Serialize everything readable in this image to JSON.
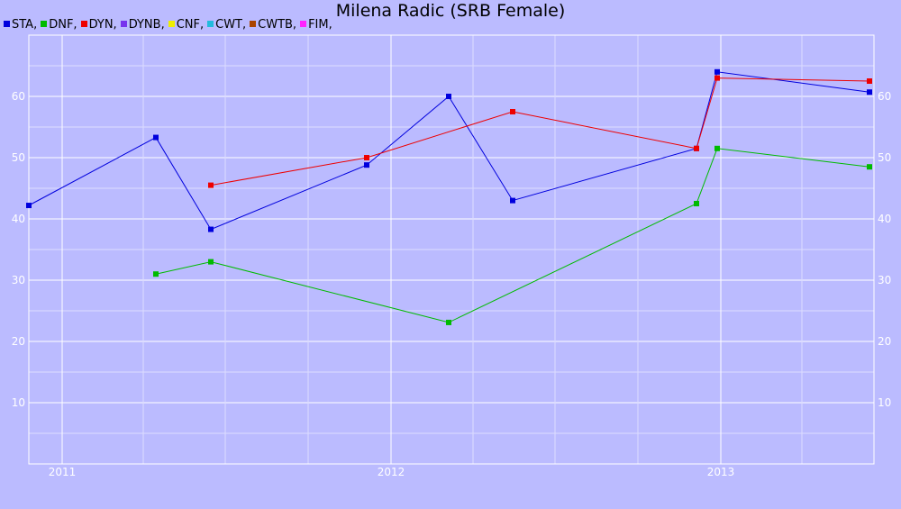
{
  "chart_data": {
    "type": "line",
    "title": "Milena Radic (SRB Female)",
    "legend_placement": "top-left",
    "legend": [
      {
        "label": "STA,",
        "color": "#0000dd"
      },
      {
        "label": "DNF,",
        "color": "#00bb00"
      },
      {
        "label": "DYN,",
        "color": "#ee0000"
      },
      {
        "label": "DYNB,",
        "color": "#7733ee"
      },
      {
        "label": "CNF,",
        "color": "#eeee00"
      },
      {
        "label": "CWT,",
        "color": "#22bbdd"
      },
      {
        "label": "CWTB,",
        "color": "#aa4400"
      },
      {
        "label": "FIM,",
        "color": "#ff22ff"
      }
    ],
    "x_axis": {
      "type": "time",
      "range": [
        "2010-11-25",
        "2013-06-20"
      ],
      "tick_labels": [
        "2011",
        "2012",
        "2013"
      ],
      "tick_dates": [
        "2011-01-01",
        "2012-01-01",
        "2013-01-01"
      ]
    },
    "y_axis": {
      "range": [
        0,
        70
      ],
      "tick_labels": [
        "10",
        "20",
        "30",
        "40",
        "50",
        "60"
      ],
      "tick_values": [
        10,
        20,
        30,
        40,
        50,
        60
      ],
      "minor_step": 5
    },
    "grid": true,
    "series": [
      {
        "name": "STA",
        "color": "#0000dd",
        "points": [
          {
            "x": "2010-11-25",
            "y": 42.2
          },
          {
            "x": "2011-04-15",
            "y": 53.3
          },
          {
            "x": "2011-06-15",
            "y": 38.3
          },
          {
            "x": "2011-12-05",
            "y": 48.8
          },
          {
            "x": "2012-03-05",
            "y": 60.0
          },
          {
            "x": "2012-05-15",
            "y": 43.0
          },
          {
            "x": "2012-12-05",
            "y": 51.5
          },
          {
            "x": "2012-12-28",
            "y": 64.0
          },
          {
            "x": "2013-06-15",
            "y": 60.7
          }
        ]
      },
      {
        "name": "DNF",
        "color": "#00bb00",
        "points": [
          {
            "x": "2011-04-15",
            "y": 31.0
          },
          {
            "x": "2011-06-15",
            "y": 33.0
          },
          {
            "x": "2012-03-05",
            "y": 23.1
          },
          {
            "x": "2012-12-05",
            "y": 42.5
          },
          {
            "x": "2012-12-28",
            "y": 51.5
          },
          {
            "x": "2013-06-15",
            "y": 48.5
          }
        ]
      },
      {
        "name": "DYN",
        "color": "#ee0000",
        "points": [
          {
            "x": "2011-06-15",
            "y": 45.5
          },
          {
            "x": "2011-12-05",
            "y": 50.0
          },
          {
            "x": "2012-05-15",
            "y": 57.5
          },
          {
            "x": "2012-12-05",
            "y": 51.5
          },
          {
            "x": "2012-12-28",
            "y": 63.0
          },
          {
            "x": "2013-06-15",
            "y": 62.5
          }
        ]
      }
    ]
  }
}
